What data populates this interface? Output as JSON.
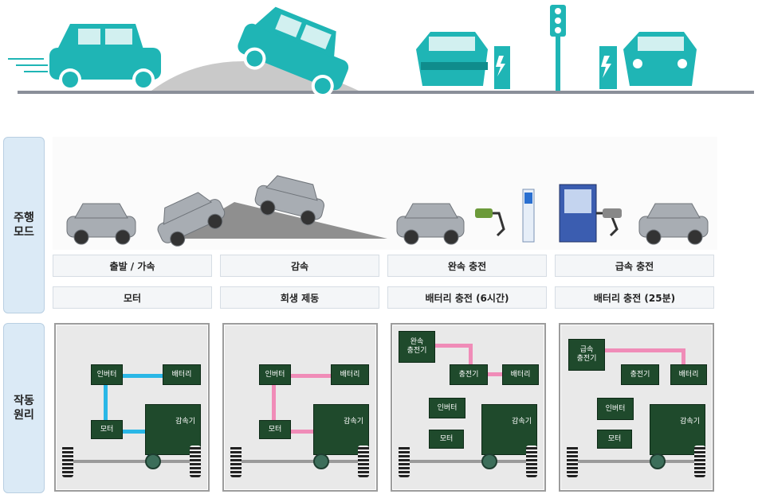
{
  "colors": {
    "teal": "#1fb5b5",
    "panel_bg": "#e9e9e9",
    "component": "#1f4a2c",
    "motor_line": "#2ab7e6",
    "regen_line": "#f08cb8"
  },
  "side_labels": {
    "drive_mode": "주행\n모드",
    "principle": "작동\n원리"
  },
  "modes": [
    {
      "name": "출발 / 가속",
      "source": "모터"
    },
    {
      "name": "감속",
      "source": "회생 제동"
    },
    {
      "name": "완속 충전",
      "source": "배터리 충전 (6시간)"
    },
    {
      "name": "급속 충전",
      "source": "배터리 충전 (25분)"
    }
  ],
  "panels": {
    "p1": {
      "inverter": "인버터",
      "battery": "배터리",
      "motor": "모터",
      "reducer": "감속기"
    },
    "p2": {
      "inverter": "인버터",
      "battery": "배터리",
      "motor": "모터",
      "reducer": "감속기"
    },
    "p3": {
      "slow_charger": "완속\n충전기",
      "charger": "충전기",
      "battery": "배터리",
      "inverter": "인버터",
      "motor": "모터",
      "reducer": "감속기"
    },
    "p4": {
      "fast_charger": "급속\n충전기",
      "charger": "충전기",
      "battery": "배터리",
      "inverter": "인버터",
      "motor": "모터",
      "reducer": "감속기"
    }
  },
  "icons": [
    "car-driving-icon",
    "car-uphill-icon",
    "car-charging-icon",
    "traffic-light-icon",
    "charger-station-icon"
  ]
}
